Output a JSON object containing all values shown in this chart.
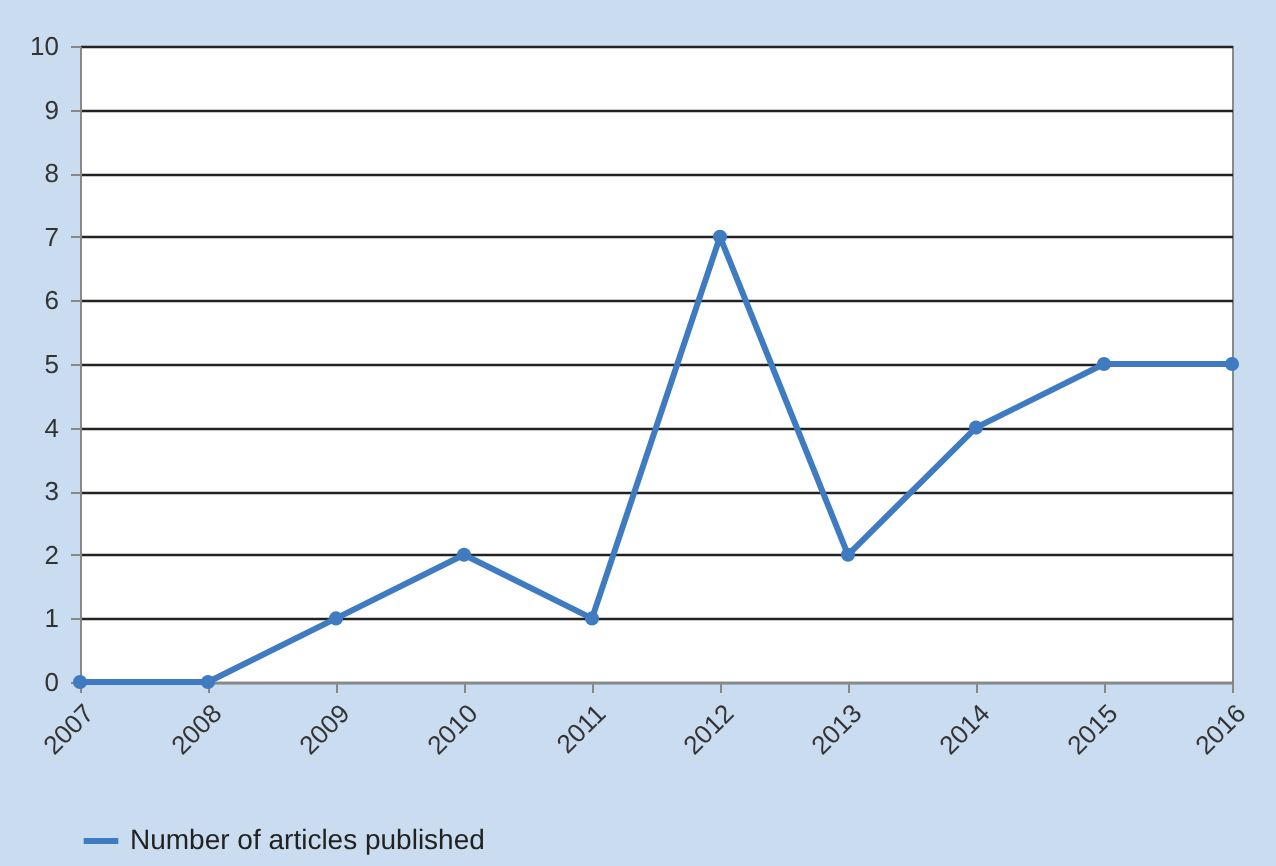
{
  "chart_data": {
    "type": "line",
    "categories": [
      "2007",
      "2008",
      "2009",
      "2010",
      "2011",
      "2012",
      "2013",
      "2014",
      "2015",
      "2016"
    ],
    "series": [
      {
        "name": "Number of articles published",
        "color": "#3f7bc1",
        "values": [
          0,
          0,
          1,
          2,
          1,
          7,
          2,
          4,
          5,
          5
        ]
      }
    ],
    "ylim": [
      0,
      10
    ],
    "yticks": [
      0,
      1,
      2,
      3,
      4,
      5,
      6,
      7,
      8,
      9,
      10
    ],
    "grid": "y",
    "legend": "bottom",
    "marker": "circle",
    "line_style": "solid"
  }
}
